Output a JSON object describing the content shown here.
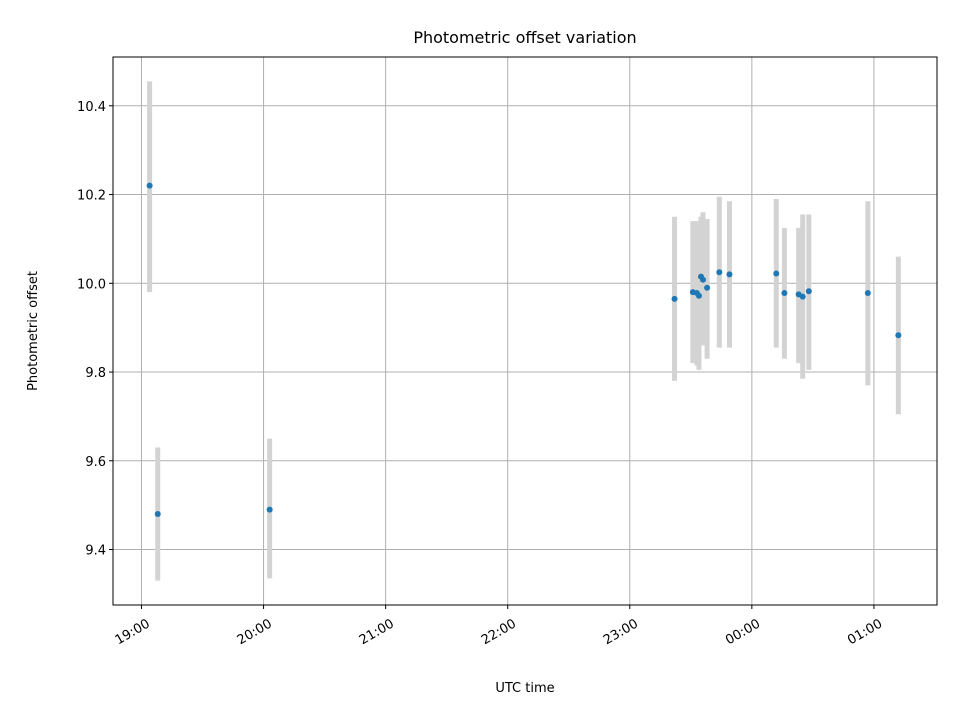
{
  "chart_data": {
    "type": "scatter",
    "title": "Photometric offset variation",
    "xlabel": "UTC time",
    "ylabel": "Photometric offset",
    "x_ticks": [
      "19:00",
      "20:00",
      "21:00",
      "22:00",
      "23:00",
      "00:00",
      "01:00"
    ],
    "y_ticks": [
      "9.4",
      "9.6",
      "9.8",
      "10.0",
      "10.2",
      "10.4"
    ],
    "xlim": [
      "18:46",
      "01:31"
    ],
    "ylim": [
      9.275,
      10.51
    ],
    "grid": true,
    "colors": {
      "point": "#1f77b4",
      "errorbar": "#d3d3d3",
      "grid": "#b0b0b0"
    },
    "series": [
      {
        "points": [
          {
            "x": "19:04",
            "y": 10.22,
            "ylo": 9.98,
            "yhi": 10.455
          },
          {
            "x": "19:08",
            "y": 9.48,
            "ylo": 9.33,
            "yhi": 9.63
          },
          {
            "x": "20:03",
            "y": 9.49,
            "ylo": 9.335,
            "yhi": 9.65
          },
          {
            "x": "23:22",
            "y": 9.965,
            "ylo": 9.78,
            "yhi": 10.15
          },
          {
            "x": "23:31",
            "y": 9.98,
            "ylo": 9.82,
            "yhi": 10.14
          },
          {
            "x": "23:33",
            "y": 9.978,
            "ylo": 9.815,
            "yhi": 10.14
          },
          {
            "x": "23:34",
            "y": 9.972,
            "ylo": 9.805,
            "yhi": 10.14
          },
          {
            "x": "23:35",
            "y": 10.015,
            "ylo": 9.86,
            "yhi": 10.15
          },
          {
            "x": "23:36",
            "y": 10.008,
            "ylo": 9.86,
            "yhi": 10.16
          },
          {
            "x": "23:38",
            "y": 9.99,
            "ylo": 9.83,
            "yhi": 10.145
          },
          {
            "x": "23:44",
            "y": 10.025,
            "ylo": 9.855,
            "yhi": 10.195
          },
          {
            "x": "23:49",
            "y": 10.02,
            "ylo": 9.855,
            "yhi": 10.185
          },
          {
            "x": "00:12",
            "y": 10.022,
            "ylo": 9.855,
            "yhi": 10.19
          },
          {
            "x": "00:16",
            "y": 9.978,
            "ylo": 9.83,
            "yhi": 10.125
          },
          {
            "x": "00:23",
            "y": 9.975,
            "ylo": 9.82,
            "yhi": 10.125
          },
          {
            "x": "00:25",
            "y": 9.97,
            "ylo": 9.785,
            "yhi": 10.155
          },
          {
            "x": "00:28",
            "y": 9.982,
            "ylo": 9.805,
            "yhi": 10.155
          },
          {
            "x": "00:57",
            "y": 9.978,
            "ylo": 9.77,
            "yhi": 10.185
          },
          {
            "x": "01:12",
            "y": 9.883,
            "ylo": 9.705,
            "yhi": 10.06
          }
        ]
      }
    ]
  }
}
